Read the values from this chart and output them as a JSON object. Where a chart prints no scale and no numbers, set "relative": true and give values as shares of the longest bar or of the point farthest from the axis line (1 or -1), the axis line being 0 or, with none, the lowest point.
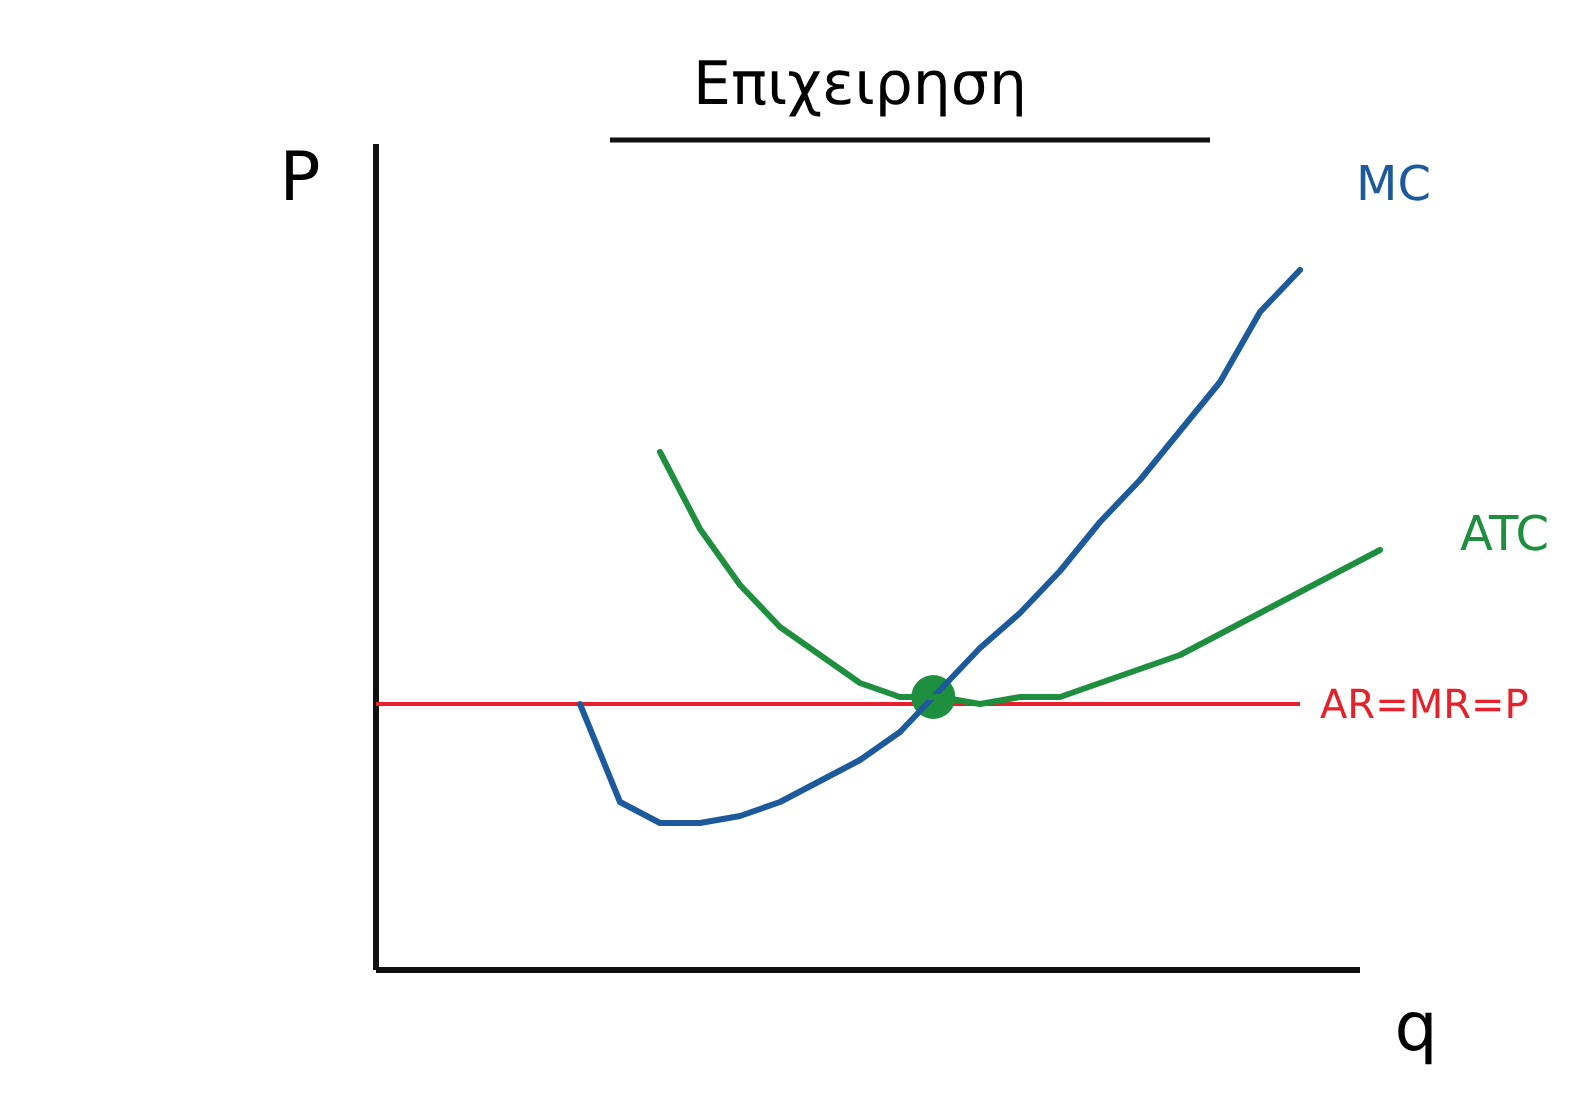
{
  "chart_data": {
    "type": "line",
    "title": "Επιχειρηση",
    "xlabel": "q",
    "ylabel": "P",
    "relative": true,
    "line_style": "solid",
    "categories": [
      null,
      null,
      null,
      null,
      null,
      null,
      null,
      null,
      null,
      null,
      null,
      null,
      null,
      null,
      null,
      null,
      null,
      null,
      null,
      null,
      null
    ],
    "series": [
      {
        "name": "MC",
        "color": "#1c5a9c",
        "values": [
          0.38,
          0.24,
          0.21,
          0.21,
          0.22,
          0.24,
          0.27,
          0.3,
          0.34,
          0.4,
          0.46,
          0.51,
          0.57,
          0.64,
          0.7,
          0.77,
          0.84,
          0.94,
          1.0,
          null,
          null
        ]
      },
      {
        "name": "ATC",
        "color": "#1e8f3e",
        "values": [
          null,
          null,
          0.74,
          0.63,
          0.55,
          0.49,
          0.45,
          0.41,
          0.39,
          0.39,
          0.38,
          0.39,
          0.39,
          0.41,
          0.43,
          0.45,
          0.48,
          0.51,
          0.54,
          0.57,
          0.6
        ]
      }
    ],
    "ref_lines": [
      {
        "axis": "y",
        "value": 0.38,
        "label": "AR=MR=P",
        "color": "#e8202a"
      }
    ]
  }
}
